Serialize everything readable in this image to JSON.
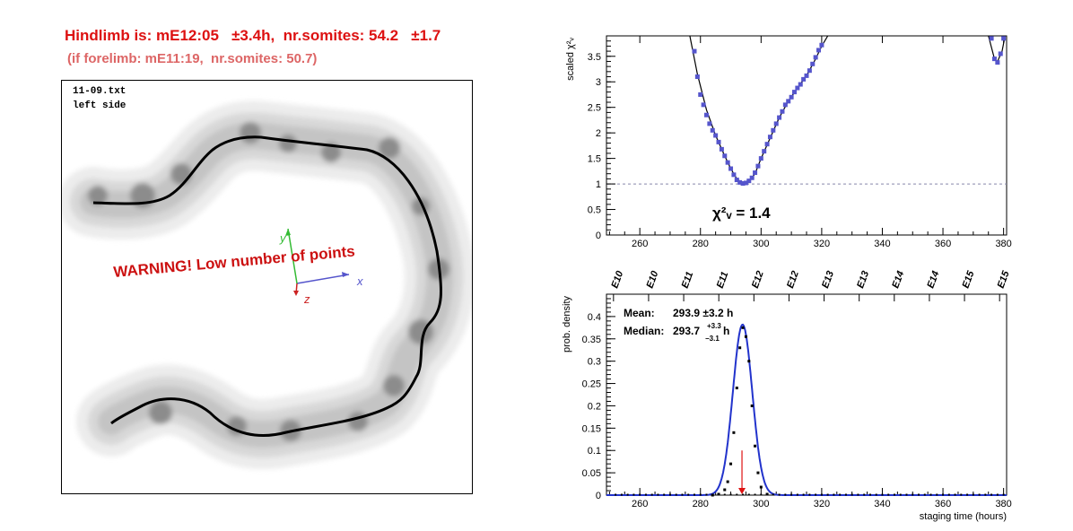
{
  "header": {
    "line1": "Hindlimb is: mE12:05   ±3.4h,  nr.somites: 54.2   ±1.7",
    "line2": "(if forelimb: mE11:19,  nr.somites: 50.7)"
  },
  "limb_panel": {
    "file_name": "11-09.txt",
    "side": "left side",
    "warning": "WARNING! Low number of points",
    "axis_x": "x",
    "axis_y": "y",
    "axis_z": "z",
    "colors": {
      "warning": "#cc1111",
      "x_axis": "#5555cc",
      "y_axis": "#33bb33",
      "z_axis": "#cc2222"
    }
  },
  "chart_data": [
    {
      "type": "scatter",
      "ylabel": "scaled χ²ᵥ",
      "xlim": [
        249,
        381
      ],
      "ylim": [
        0,
        3.9
      ],
      "x_ticks": [
        260,
        280,
        300,
        320,
        340,
        360,
        380
      ],
      "x_tick_labels": [
        "260",
        "280",
        "300",
        "320",
        "340",
        "360",
        "380"
      ],
      "y_ticks": [
        0,
        0.5,
        1,
        1.5,
        2,
        2.5,
        3,
        3.5
      ],
      "y_tick_labels": [
        "0",
        "0.5",
        "1",
        "1.5",
        "2",
        "2.5",
        "3",
        "3.5"
      ],
      "reference_line": 1,
      "annotation": "χ²ᵥ = 1.4",
      "colors": {
        "points": "#5555cc",
        "fit": "#000000",
        "reference": "#8888aa"
      },
      "points": [
        [
          278,
          3.6
        ],
        [
          279,
          3.1
        ],
        [
          280,
          2.75
        ],
        [
          281,
          2.55
        ],
        [
          282,
          2.35
        ],
        [
          283,
          2.18
        ],
        [
          284,
          2.05
        ],
        [
          285,
          1.95
        ],
        [
          286,
          1.82
        ],
        [
          287,
          1.68
        ],
        [
          288,
          1.55
        ],
        [
          289,
          1.42
        ],
        [
          290,
          1.3
        ],
        [
          291,
          1.18
        ],
        [
          292,
          1.08
        ],
        [
          293,
          1.03
        ],
        [
          294,
          1.01
        ],
        [
          295,
          1.02
        ],
        [
          296,
          1.06
        ],
        [
          297,
          1.12
        ],
        [
          298,
          1.22
        ],
        [
          299,
          1.35
        ],
        [
          300,
          1.5
        ],
        [
          301,
          1.64
        ],
        [
          302,
          1.78
        ],
        [
          303,
          1.92
        ],
        [
          304,
          2.05
        ],
        [
          305,
          2.18
        ],
        [
          306,
          2.3
        ],
        [
          307,
          2.42
        ],
        [
          308,
          2.55
        ],
        [
          309,
          2.62
        ],
        [
          310,
          2.7
        ],
        [
          311,
          2.8
        ],
        [
          312,
          2.88
        ],
        [
          313,
          2.95
        ],
        [
          314,
          3.05
        ],
        [
          315,
          3.12
        ],
        [
          316,
          3.22
        ],
        [
          317,
          3.35
        ],
        [
          318,
          3.48
        ],
        [
          319,
          3.62
        ],
        [
          320,
          3.72
        ],
        [
          376,
          3.85
        ],
        [
          377,
          3.45
        ],
        [
          378,
          3.38
        ],
        [
          379,
          3.55
        ],
        [
          380,
          3.85
        ]
      ],
      "fit_left": [
        [
          276.5,
          3.9
        ],
        [
          279,
          3.15
        ],
        [
          282,
          2.45
        ],
        [
          285,
          1.95
        ],
        [
          288,
          1.55
        ],
        [
          290,
          1.3
        ],
        [
          292,
          1.1
        ],
        [
          294,
          1.01
        ],
        [
          296,
          1.05
        ],
        [
          298,
          1.2
        ],
        [
          300,
          1.5
        ],
        [
          303,
          1.9
        ],
        [
          306,
          2.3
        ],
        [
          309,
          2.62
        ],
        [
          312,
          2.88
        ],
        [
          315,
          3.12
        ],
        [
          318,
          3.45
        ],
        [
          320,
          3.7
        ],
        [
          322,
          3.9
        ]
      ],
      "fit_right": [
        [
          375,
          3.9
        ],
        [
          377,
          3.45
        ],
        [
          378,
          3.4
        ],
        [
          379.5,
          3.6
        ],
        [
          380.5,
          3.9
        ]
      ]
    },
    {
      "type": "line",
      "xlabel": "staging time (hours)",
      "ylabel": "prob. density",
      "xlim": [
        249,
        381
      ],
      "ylim": [
        0,
        0.45
      ],
      "x_ticks": [
        260,
        280,
        300,
        320,
        340,
        360,
        380
      ],
      "x_tick_labels": [
        "260",
        "280",
        "300",
        "320",
        "340",
        "360",
        "380"
      ],
      "y_ticks": [
        0,
        0.05,
        0.1,
        0.15,
        0.2,
        0.25,
        0.3,
        0.35,
        0.4
      ],
      "y_tick_labels": [
        "0",
        "0.05",
        "0.1",
        "0.15",
        "0.2",
        "0.25",
        "0.3",
        "0.35",
        "0.4"
      ],
      "top_axis_labels": [
        "E10",
        "E10",
        "E11",
        "E11",
        "E12",
        "E12",
        "E13",
        "E13",
        "E14",
        "E14",
        "E15",
        "E15"
      ],
      "mean_label": "Mean:",
      "mean_value": "293.9 ±3.2 h",
      "median_label": "Median:",
      "median_value": "293.7",
      "median_plus": "+3.3",
      "median_minus": "−3.1",
      "median_unit": "h",
      "marker_x": 293.7,
      "colors": {
        "curve": "#2233cc",
        "points": "#000000",
        "arrow": "#dd1111"
      },
      "gaussian": {
        "mean": 293.9,
        "sigma": 3.2,
        "peak": 0.382
      },
      "points": [
        [
          284,
          0.0
        ],
        [
          286,
          0.002
        ],
        [
          288,
          0.012
        ],
        [
          289,
          0.03
        ],
        [
          290,
          0.07
        ],
        [
          291,
          0.14
        ],
        [
          292,
          0.24
        ],
        [
          293,
          0.33
        ],
        [
          294,
          0.375
        ],
        [
          295,
          0.355
        ],
        [
          296,
          0.3
        ],
        [
          297,
          0.2
        ],
        [
          298,
          0.11
        ],
        [
          299,
          0.05
        ],
        [
          300,
          0.018
        ],
        [
          302,
          0.002
        ]
      ]
    }
  ]
}
